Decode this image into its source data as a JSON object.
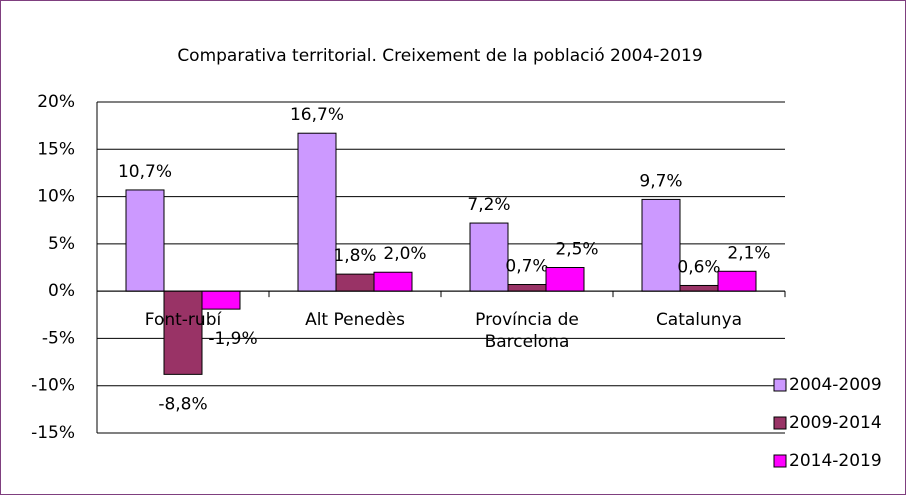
{
  "chart_data": {
    "type": "bar",
    "title": "Comparativa territorial. Creixement de la població 2004-2019",
    "categories": [
      "Font-rubí",
      "Alt Penedès",
      "Província de Barcelona",
      "Catalunya"
    ],
    "series": [
      {
        "name": "2004-2009",
        "color": "#cc99ff",
        "values": [
          10.7,
          16.7,
          7.2,
          9.7
        ],
        "value_labels": [
          "10,7%",
          "16,7%",
          "7,2%",
          "9,7%"
        ]
      },
      {
        "name": "2009-2014",
        "color": "#993366",
        "values": [
          -8.8,
          1.8,
          0.7,
          0.6
        ],
        "value_labels": [
          "-8,8%",
          "1,8%",
          "0,7%",
          "0,6%"
        ]
      },
      {
        "name": "2014-2019",
        "color": "#ff00ff",
        "values": [
          -1.9,
          2.0,
          2.5,
          2.1
        ],
        "value_labels": [
          "-1,9%",
          "2,0%",
          "2,5%",
          "2,1%"
        ]
      }
    ],
    "ylim": [
      -15,
      20
    ],
    "yticks": [
      {
        "value": -15,
        "label": "-15%"
      },
      {
        "value": -10,
        "label": "-10%"
      },
      {
        "value": -5,
        "label": "-5%"
      },
      {
        "value": 0,
        "label": "0%"
      },
      {
        "value": 5,
        "label": "5%"
      },
      {
        "value": 10,
        "label": "10%"
      },
      {
        "value": 15,
        "label": "15%"
      },
      {
        "value": 20,
        "label": "20%"
      }
    ],
    "grid": true,
    "legend": "right"
  }
}
